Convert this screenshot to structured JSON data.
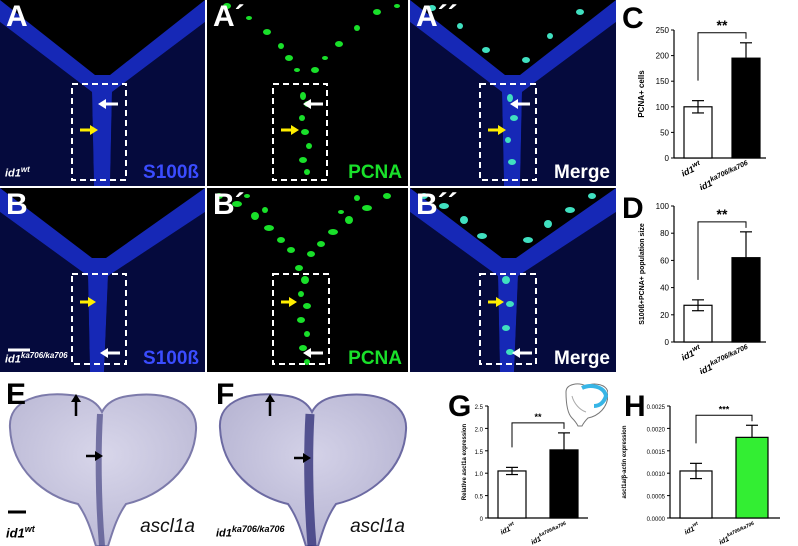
{
  "panels": {
    "A": {
      "letter": "A",
      "channel": "S100ß",
      "genotype_base": "id1",
      "genotype_sup": "wt"
    },
    "A1": {
      "letter": "A´",
      "channel": "PCNA"
    },
    "A2": {
      "letter": "A´´",
      "channel": "Merge"
    },
    "B": {
      "letter": "B",
      "channel": "S100ß",
      "genotype_base": "id1",
      "genotype_sup": "ka706/ka706"
    },
    "B1": {
      "letter": "B´",
      "channel": "PCNA"
    },
    "B2": {
      "letter": "B´´",
      "channel": "Merge"
    },
    "E": {
      "letter": "E",
      "gene": "ascl1a",
      "genotype_base": "id1",
      "genotype_sup": "wt"
    },
    "F": {
      "letter": "F",
      "gene": "ascl1a",
      "genotype_base": "id1",
      "genotype_sup": "ka706/ka706"
    },
    "C": {
      "letter": "C"
    },
    "D": {
      "letter": "D"
    },
    "G": {
      "letter": "G"
    },
    "H": {
      "letter": "H"
    }
  },
  "colors": {
    "blue": "#1a2fd6",
    "green": "#19e02a",
    "bar_black": "#000000",
    "bar_green": "#33ee33"
  },
  "chart_data": [
    {
      "id": "C",
      "type": "bar",
      "categories": [
        "id1wt",
        "id1ka706/ka706"
      ],
      "category_base": [
        "id1",
        "id1"
      ],
      "category_sup": [
        "wt",
        "ka706/ka706"
      ],
      "values": [
        100,
        195
      ],
      "errors": [
        12,
        30
      ],
      "ylabel": "PCNA+ cells",
      "ylim": [
        0,
        250
      ],
      "yticks": [
        0,
        50,
        100,
        150,
        200,
        250
      ],
      "ytick_labels": [
        "0",
        "50",
        "100",
        "150",
        "200",
        "250"
      ],
      "significance": "**",
      "bar_colors": [
        "#ffffff",
        "#000000"
      ]
    },
    {
      "id": "D",
      "type": "bar",
      "categories": [
        "id1wt",
        "id1ka706/ka706"
      ],
      "category_base": [
        "id1",
        "id1"
      ],
      "category_sup": [
        "wt",
        "ka706/ka706"
      ],
      "values": [
        27,
        62
      ],
      "errors": [
        4,
        19
      ],
      "ylabel": "S100ß+PCNA+ population size",
      "ylim": [
        0,
        100
      ],
      "yticks": [
        0,
        20,
        40,
        60,
        80,
        100
      ],
      "ytick_labels": [
        "0",
        "20",
        "40",
        "60",
        "80",
        "100"
      ],
      "significance": "**",
      "bar_colors": [
        "#ffffff",
        "#000000"
      ]
    },
    {
      "id": "G",
      "type": "bar",
      "categories": [
        "id1wt",
        "id1ka706/ka706"
      ],
      "category_base": [
        "id1",
        "id1"
      ],
      "category_sup": [
        "wt",
        "ka706/ka706"
      ],
      "values": [
        1.05,
        1.52
      ],
      "errors": [
        0.08,
        0.38
      ],
      "ylabel": "Relative ascl1a expression",
      "ylim": [
        0,
        2.5
      ],
      "yticks": [
        0,
        0.5,
        1.0,
        1.5,
        2.0,
        2.5
      ],
      "ytick_labels": [
        "0",
        "0.5",
        "1.0",
        "1.5",
        "2.0",
        "2.5"
      ],
      "significance": "**",
      "bar_colors": [
        "#ffffff",
        "#000000"
      ]
    },
    {
      "id": "H",
      "type": "bar",
      "categories": [
        "id1wt",
        "id1ka706/ka706"
      ],
      "category_base": [
        "id1",
        "id1"
      ],
      "category_sup": [
        "wt",
        "ka706/ka706"
      ],
      "values": [
        0.00105,
        0.0018
      ],
      "errors": [
        0.00017,
        0.00027
      ],
      "ylabel": "ascl1a/β-actin expression",
      "ylim": [
        0,
        0.0025
      ],
      "yticks": [
        0,
        0.0005,
        0.001,
        0.0015,
        0.002,
        0.0025
      ],
      "ytick_labels": [
        "0.0000",
        "0.0005",
        "0.0010",
        "0.0015",
        "0.0020",
        "0.0025"
      ],
      "significance": "***",
      "bar_colors": [
        "#ffffff",
        "#33ee33"
      ]
    }
  ]
}
